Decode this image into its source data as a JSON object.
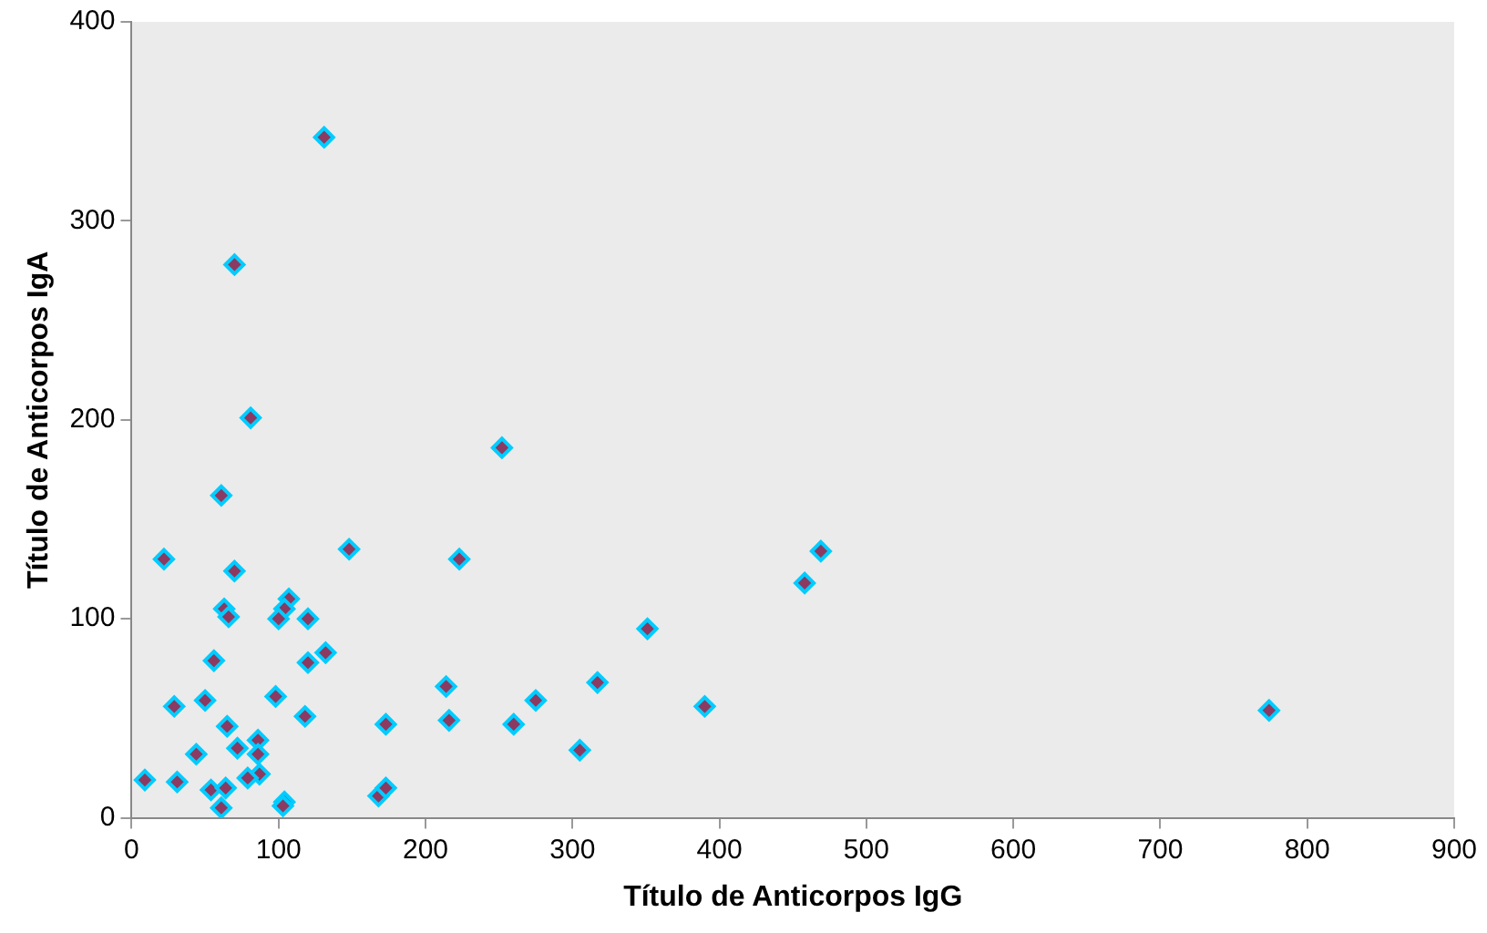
{
  "chart_data": {
    "type": "scatter",
    "xlabel": "Título de Anticorpos IgG",
    "ylabel": "Título de Anticorpos IgA",
    "x": [
      61,
      22,
      148,
      70,
      107,
      63,
      66,
      104,
      100,
      120,
      56,
      132,
      120,
      98,
      50,
      29,
      118,
      173,
      65,
      86,
      72,
      86,
      44,
      87,
      79,
      9,
      31,
      54,
      64,
      61,
      104,
      103,
      168,
      173,
      131,
      70,
      81,
      252,
      223,
      351,
      214,
      317,
      275,
      216,
      260,
      390,
      305,
      469,
      458,
      774
    ],
    "values": [
      162,
      130,
      135,
      124,
      110,
      105,
      101,
      105,
      100,
      100,
      79,
      83,
      78,
      61,
      59,
      56,
      51,
      47,
      46,
      39,
      35,
      32,
      32,
      22,
      20,
      19,
      18,
      14,
      15,
      5,
      8,
      6,
      11,
      15,
      342,
      278,
      201,
      186,
      130,
      95,
      66,
      68,
      59,
      49,
      47,
      56,
      34,
      134,
      118,
      54
    ],
    "color": "#8b3a62",
    "marker": "diamond",
    "xlim": [
      0,
      900
    ],
    "xticks": [
      0,
      100,
      200,
      300,
      400,
      500,
      600,
      700,
      800,
      900
    ],
    "ylim": [
      0,
      400
    ],
    "yticks": [
      0,
      100,
      200,
      300,
      400
    ],
    "grid": false,
    "legend": false
  }
}
